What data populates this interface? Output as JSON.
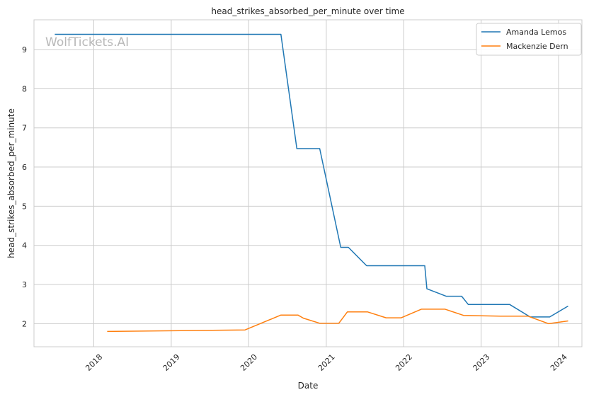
{
  "chart_data": {
    "type": "line",
    "title": "head_strikes_absorbed_per_minute over time",
    "xlabel": "Date",
    "ylabel": "head_strikes_absorbed_per_minute",
    "watermark": "WolfTickets.AI",
    "x_ticks": [
      "2018",
      "2019",
      "2020",
      "2021",
      "2022",
      "2023",
      "2024"
    ],
    "y_ticks": [
      2,
      3,
      4,
      5,
      6,
      7,
      8,
      9
    ],
    "xlim": [
      "2017-03-25",
      "2024-04-20"
    ],
    "ylim": [
      1.41,
      9.76
    ],
    "grid": true,
    "legend_position": "top-right",
    "series": [
      {
        "name": "Amanda Lemos",
        "color": "#1f77b4",
        "points": [
          [
            "2017-07-01",
            9.39
          ],
          [
            "2020-06-01",
            9.39
          ],
          [
            "2020-08-15",
            6.47
          ],
          [
            "2020-12-01",
            6.47
          ],
          [
            "2021-03-10",
            3.95
          ],
          [
            "2021-04-15",
            3.95
          ],
          [
            "2021-07-10",
            3.48
          ],
          [
            "2022-04-10",
            3.48
          ],
          [
            "2022-04-20",
            2.89
          ],
          [
            "2022-07-20",
            2.7
          ],
          [
            "2022-10-01",
            2.7
          ],
          [
            "2022-11-01",
            2.49
          ],
          [
            "2023-05-15",
            2.49
          ],
          [
            "2023-08-20",
            2.17
          ],
          [
            "2023-11-20",
            2.17
          ],
          [
            "2024-02-15",
            2.45
          ]
        ]
      },
      {
        "name": "Mackenzie Dern",
        "color": "#ff7f0e",
        "points": [
          [
            "2018-03-05",
            1.8
          ],
          [
            "2019-12-15",
            1.84
          ],
          [
            "2020-06-01",
            2.22
          ],
          [
            "2020-08-20",
            2.22
          ],
          [
            "2020-09-15",
            2.14
          ],
          [
            "2020-12-01",
            2.01
          ],
          [
            "2021-03-01",
            2.01
          ],
          [
            "2021-04-10",
            2.3
          ],
          [
            "2021-07-15",
            2.3
          ],
          [
            "2021-10-10",
            2.15
          ],
          [
            "2021-12-20",
            2.15
          ],
          [
            "2022-03-25",
            2.37
          ],
          [
            "2022-07-15",
            2.37
          ],
          [
            "2022-10-10",
            2.21
          ],
          [
            "2023-04-01",
            2.19
          ],
          [
            "2023-08-10",
            2.19
          ],
          [
            "2023-11-15",
            2.0
          ],
          [
            "2024-02-15",
            2.07
          ]
        ]
      }
    ]
  }
}
